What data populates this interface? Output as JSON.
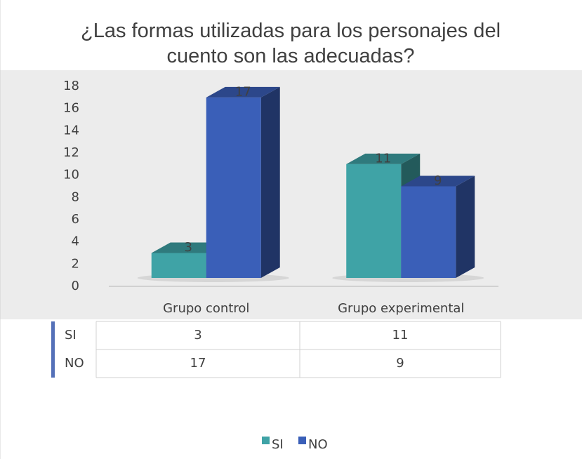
{
  "chart_data": {
    "type": "bar",
    "title": "¿Las formas utilizadas para los personajes del cuento son las adecuadas?",
    "categories": [
      "Grupo control",
      "Grupo experimental"
    ],
    "series": [
      {
        "name": "SI",
        "color": "#3fa3a6",
        "values": [
          3,
          11
        ]
      },
      {
        "name": "NO",
        "color": "#3a5fb8",
        "values": [
          17,
          9
        ]
      }
    ],
    "ylim": [
      0,
      18
    ],
    "yticks": [
      0,
      2,
      4,
      6,
      8,
      10,
      12,
      14,
      16,
      18
    ],
    "legend": "bottom"
  }
}
